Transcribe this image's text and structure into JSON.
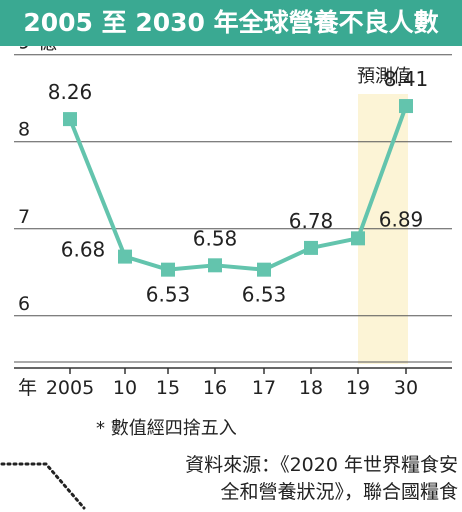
{
  "title": "2005 至 2030 年全球營養不良人數",
  "colors": {
    "accent": "#3aa992",
    "line": "#63c4ad",
    "projection_band": "#fcf4d6"
  },
  "chart_data": {
    "type": "line",
    "ylabel": "億",
    "xlabel": "年",
    "x": [
      "2005",
      "10",
      "15",
      "16",
      "17",
      "18",
      "19",
      "30"
    ],
    "series": [
      {
        "values": [
          8.26,
          6.68,
          6.53,
          6.58,
          6.53,
          6.78,
          6.89,
          8.41
        ]
      }
    ],
    "data_labels": [
      "8.26",
      "6.68",
      "6.53",
      "6.58",
      "6.53",
      "6.78",
      "6.89",
      "8.41"
    ],
    "ylim": [
      5.4,
      9.1
    ],
    "yticks": [
      9,
      8,
      7,
      6
    ],
    "grid": true,
    "projection": {
      "label": "預測值",
      "category": "30"
    }
  },
  "footnote": "* 數值經四捨五入",
  "source_lines": [
    "資料來源：《2020 年世界糧食安",
    "全和營養狀況》，聯合國糧食"
  ]
}
